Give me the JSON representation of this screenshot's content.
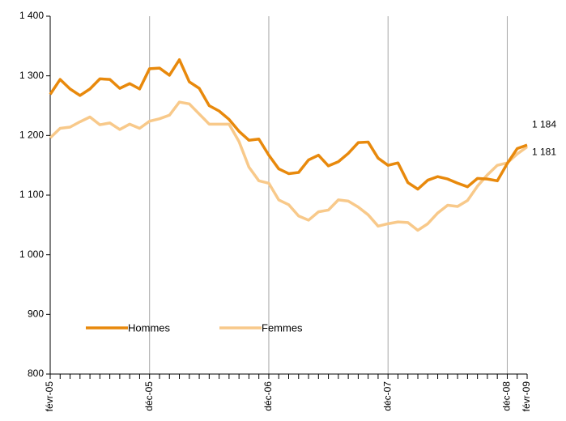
{
  "chart_data": {
    "type": "line",
    "categories": [
      "févr-05",
      null,
      null,
      null,
      null,
      null,
      null,
      null,
      null,
      null,
      "déc-05",
      null,
      null,
      null,
      null,
      null,
      null,
      null,
      null,
      null,
      null,
      null,
      "déc-06",
      null,
      null,
      null,
      null,
      null,
      null,
      null,
      null,
      null,
      null,
      null,
      "déc-07",
      null,
      null,
      null,
      null,
      null,
      null,
      null,
      null,
      null,
      null,
      null,
      "déc-08",
      null,
      "févr-09"
    ],
    "series": [
      {
        "name": "Hommes",
        "color": "#e8890c",
        "values": [
          1269,
          1294,
          1278,
          1267,
          1278,
          1295,
          1294,
          1279,
          1287,
          1278,
          1312,
          1313,
          1301,
          1327,
          1290,
          1279,
          1250,
          1241,
          1227,
          1207,
          1192,
          1194,
          1167,
          1144,
          1136,
          1138,
          1159,
          1167,
          1149,
          1156,
          1170,
          1188,
          1189,
          1162,
          1150,
          1154,
          1121,
          1110,
          1125,
          1131,
          1127,
          1120,
          1114,
          1128,
          1127,
          1124,
          1153,
          1178,
          1184
        ],
        "value_labels": [
          null,
          null,
          null,
          null,
          null,
          null,
          null,
          null,
          null,
          null,
          null,
          null,
          null,
          null,
          null,
          null,
          null,
          null,
          null,
          null,
          null,
          null,
          null,
          null,
          null,
          null,
          null,
          null,
          null,
          null,
          null,
          null,
          null,
          null,
          null,
          null,
          null,
          null,
          null,
          null,
          null,
          null,
          null,
          null,
          null,
          null,
          null,
          null,
          "1 184"
        ]
      },
      {
        "name": "Femmes",
        "color": "#f8c98a",
        "values": [
          1196,
          1212,
          1214,
          1223,
          1231,
          1218,
          1221,
          1210,
          1219,
          1212,
          1224,
          1228,
          1234,
          1256,
          1253,
          1236,
          1219,
          1219,
          1219,
          1190,
          1147,
          1124,
          1120,
          1092,
          1084,
          1065,
          1058,
          1072,
          1075,
          1092,
          1090,
          1080,
          1067,
          1048,
          1052,
          1055,
          1054,
          1041,
          1052,
          1070,
          1083,
          1081,
          1091,
          1115,
          1134,
          1150,
          1154,
          1169,
          1181
        ],
        "value_labels": [
          null,
          null,
          null,
          null,
          null,
          null,
          null,
          null,
          null,
          null,
          null,
          null,
          null,
          null,
          null,
          null,
          null,
          null,
          null,
          null,
          null,
          null,
          null,
          null,
          null,
          null,
          null,
          null,
          null,
          null,
          null,
          null,
          null,
          null,
          null,
          null,
          null,
          null,
          null,
          null,
          null,
          null,
          null,
          null,
          null,
          null,
          null,
          null,
          "1 181"
        ]
      }
    ],
    "ylim": [
      800,
      1400
    ],
    "yticks": [
      800,
      900,
      {
        "value": 1000,
        "label": "1 000"
      },
      {
        "value": 1100,
        "label": "1 100"
      },
      {
        "value": 1200,
        "label": "1 200"
      },
      {
        "value": 1300,
        "label": "1 300"
      },
      {
        "value": 1400,
        "label": "1 400"
      }
    ],
    "xgrid": true,
    "legend": "lower left"
  }
}
